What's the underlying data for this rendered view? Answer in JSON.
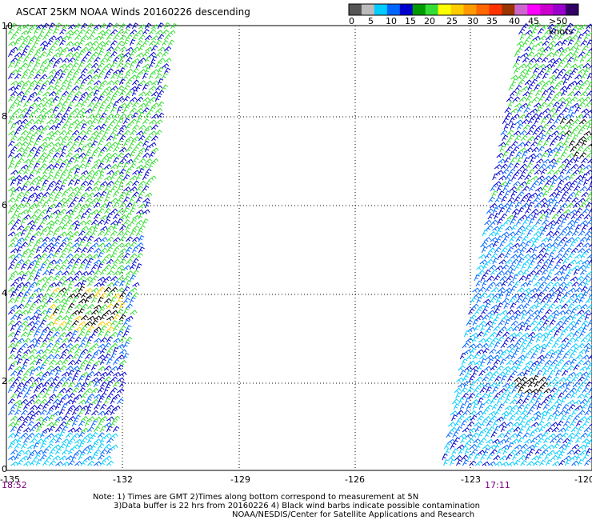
{
  "title": "ASCAT 25KM NOAA Winds 20160226 descending",
  "legend": {
    "colors": [
      "#555555",
      "#bbbbbb",
      "#00ccff",
      "#0066ff",
      "#0000cc",
      "#009900",
      "#33dd33",
      "#ffff00",
      "#ffcc00",
      "#ff9900",
      "#ff6600",
      "#ff3300",
      "#993300",
      "#cc66cc",
      "#ff00ff",
      "#cc00cc",
      "#9900cc",
      "#330066"
    ],
    "labels": [
      "0",
      "5",
      "10",
      "15",
      "20",
      "25",
      "30",
      "35",
      "40",
      "45",
      ">50 knots"
    ]
  },
  "axes": {
    "x_ticks": [
      "-135",
      "-132",
      "-129",
      "-126",
      "-123",
      "-120"
    ],
    "y_ticks": [
      "10",
      "8",
      "6",
      "4",
      "2",
      "0"
    ]
  },
  "swath_times": {
    "left": "18:52",
    "right": "17:11"
  },
  "notes": [
    "Note: 1) Times are GMT 2)Times along bottom correspond to measurement at 5N",
    "3)Data buffer is 22 hrs from 20160226 4) Black wind barbs indicate possible contamination",
    "NOAA/NESDIS/Center for Satellite Applications and Research"
  ],
  "barb_colors": {
    "light_green": "#33dd33",
    "dark_blue": "#0000cc",
    "medium_blue": "#0066ff",
    "cyan": "#00ccff",
    "yellow": "#ffcc00",
    "black": "#000000"
  }
}
